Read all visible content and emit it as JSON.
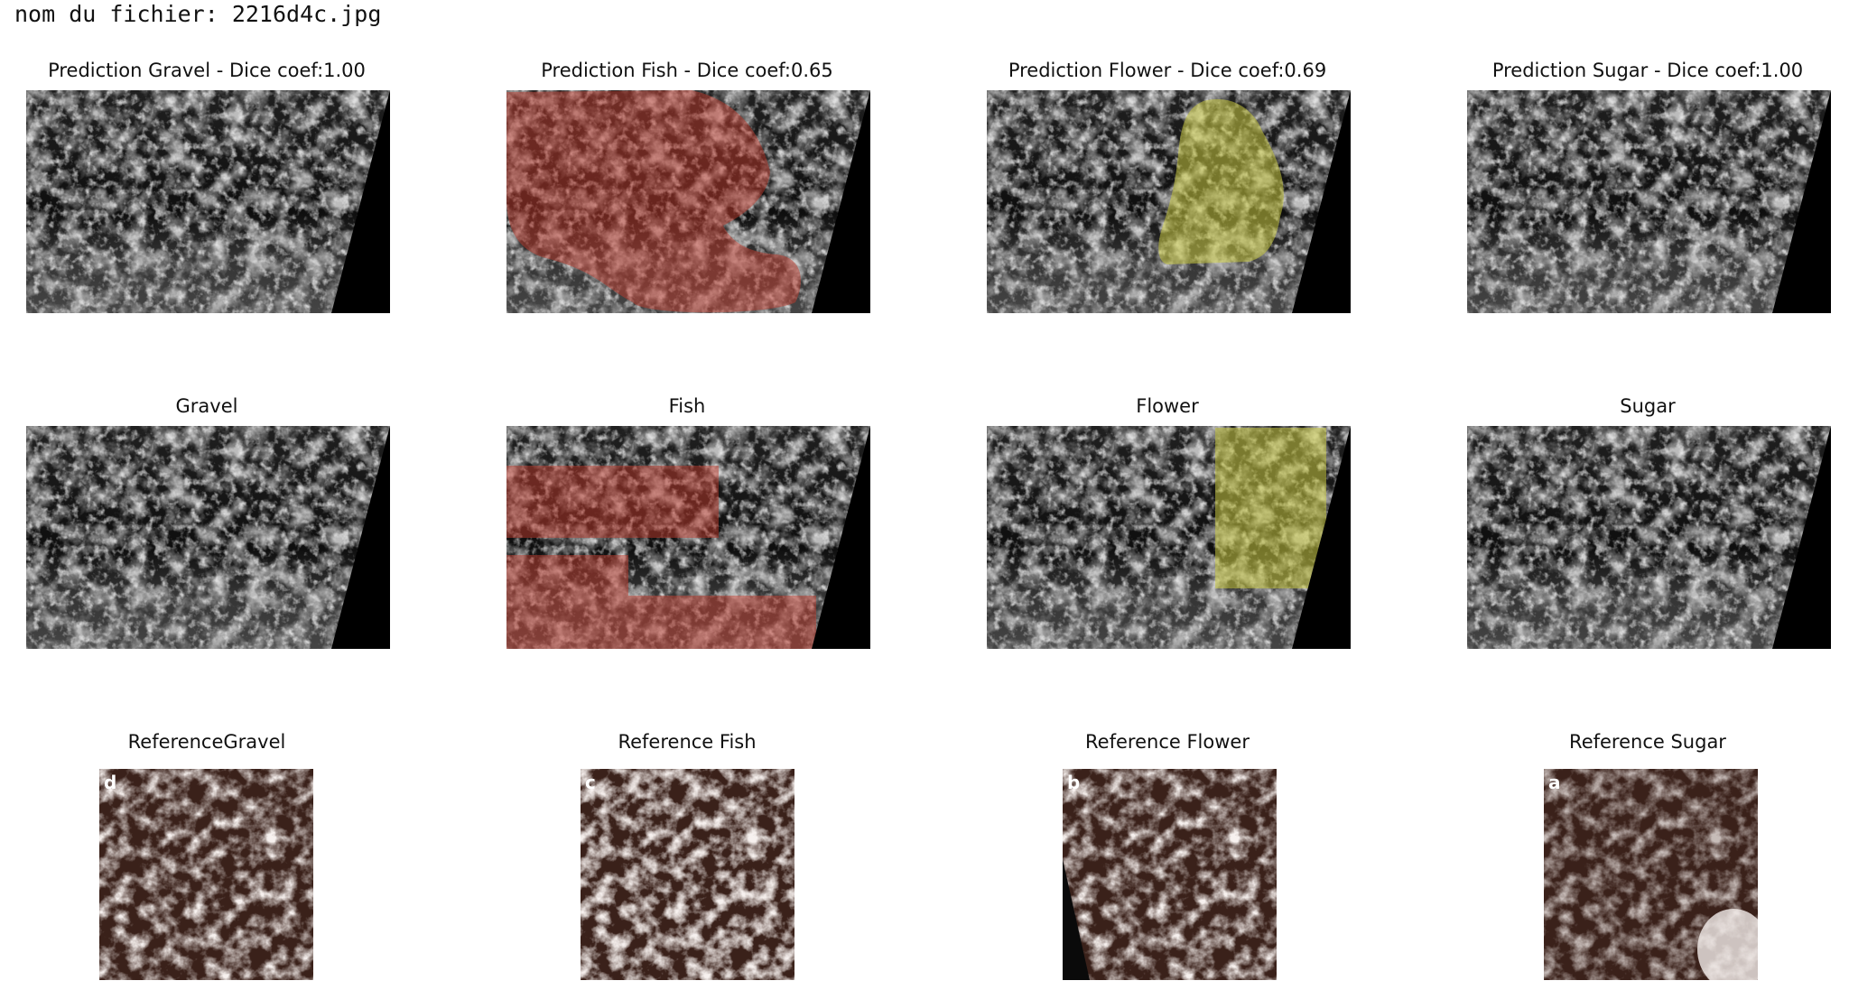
{
  "filename_label": "nom du fichier: 2216d4c.jpg",
  "rows": {
    "prediction": {
      "titles": [
        "Prediction Gravel - Dice coef:1.00",
        "Prediction Fish - Dice coef:0.65",
        "Prediction Flower - Dice coef:0.69",
        "Prediction Sugar - Dice coef:1.00"
      ]
    },
    "ground_truth": {
      "titles": [
        "Gravel",
        "Fish",
        "Flower",
        "Sugar"
      ]
    },
    "reference": {
      "titles": [
        "ReferenceGravel",
        "Reference Fish",
        "Reference Flower",
        "Reference Sugar"
      ],
      "corner_letters": [
        "d",
        "c",
        "b",
        "a"
      ]
    }
  },
  "mask_colors": {
    "fish": "#c0392b",
    "flower": "#c8c840"
  }
}
